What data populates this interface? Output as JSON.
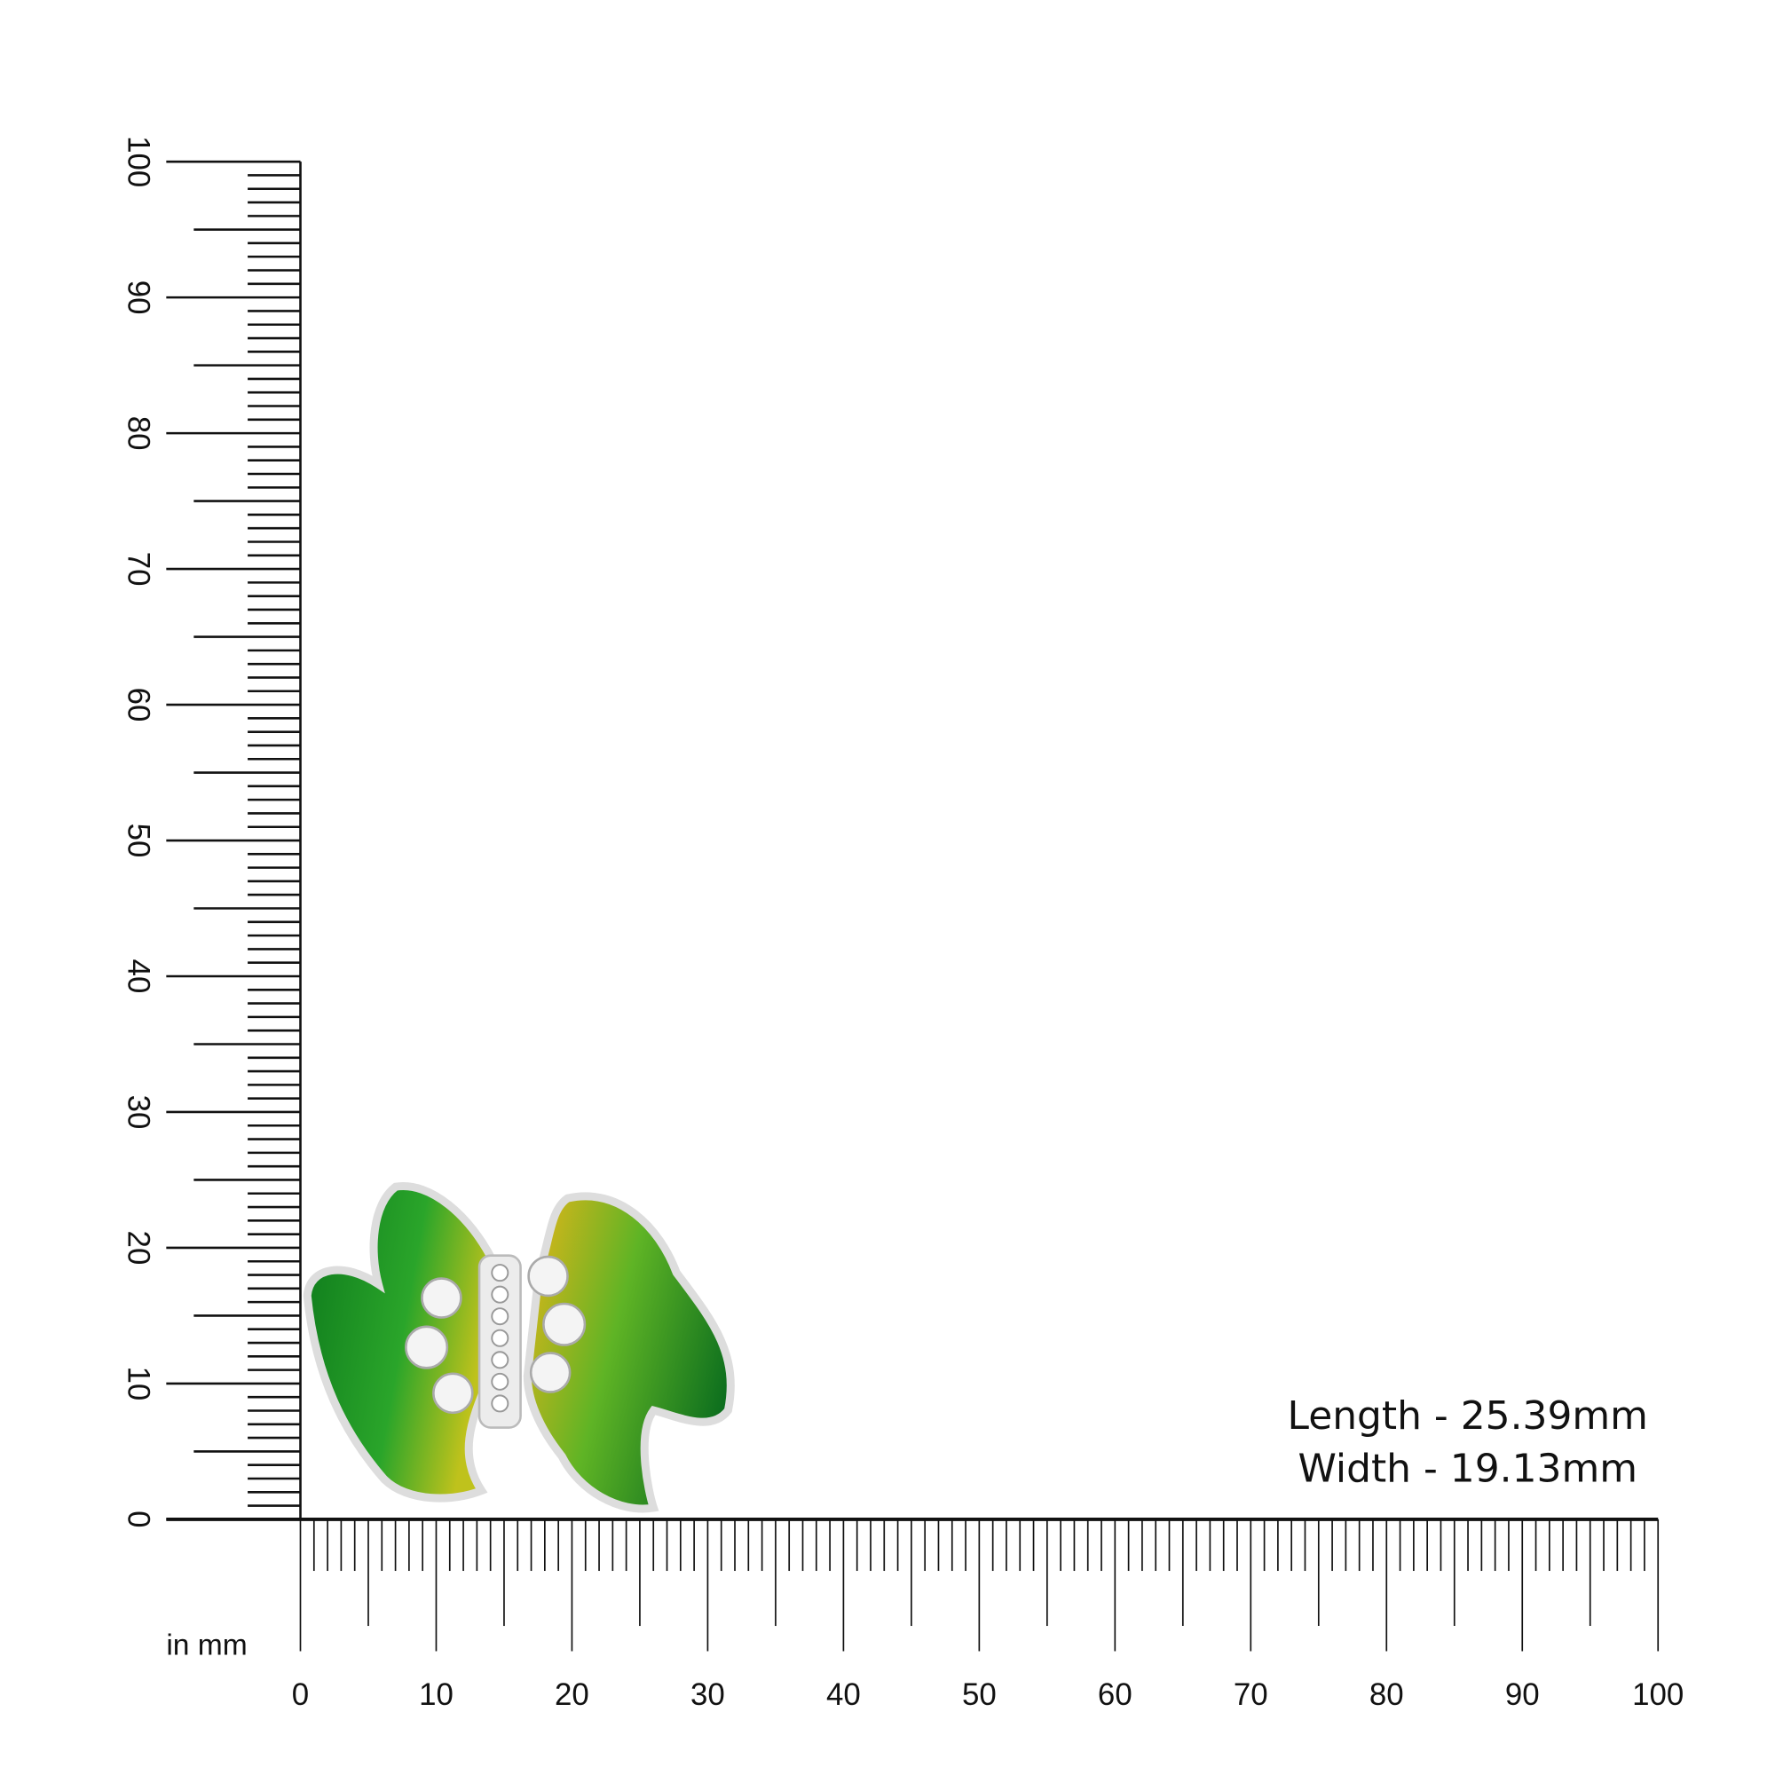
{
  "ruler": {
    "unit_label": "in mm",
    "x_ticks": [
      "0",
      "10",
      "20",
      "30",
      "40",
      "50",
      "60",
      "70",
      "80",
      "90",
      "100"
    ],
    "y_ticks": [
      "0",
      "10",
      "20",
      "30",
      "40",
      "50",
      "60",
      "70",
      "80",
      "90",
      "100"
    ],
    "range_mm": [
      0,
      100
    ]
  },
  "product": {
    "type": "green enamel leaf earring with white stones",
    "colors": {
      "leaf_dark": "#0f7a1e",
      "leaf_mid": "#2fa82c",
      "leaf_yellow": "#c9c21a",
      "metal": "#e6e6e6"
    }
  },
  "dimensions": {
    "length": "Length - 25.39mm",
    "width": "Width - 19.13mm"
  }
}
